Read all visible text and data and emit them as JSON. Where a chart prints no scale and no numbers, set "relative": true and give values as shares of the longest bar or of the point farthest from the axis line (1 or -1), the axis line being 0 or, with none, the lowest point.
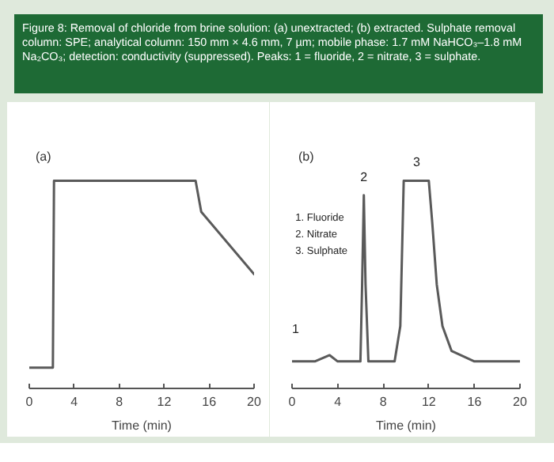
{
  "chart_data": [
    {
      "type": "line",
      "title": "Figure 8: Removal of chloride from brine solution: (a) unextracted; (b) extracted. Sulphate removal column: SPE; analytical column: 150 mm × 4.6 mm, 7 µm; mobile phase: 1.7 mM NaHCO₃–1.8 mM Na₂CO₃; detection: conductivity (suppressed). Peaks: 1 = fluoride, 2 = nitrate, 3 = sulphate.",
      "subtitle": "(a)",
      "xlabel": "Time (min)",
      "relative": true,
      "xlim": [
        0,
        20
      ],
      "xticks": [
        0,
        4,
        8,
        12,
        16,
        20
      ],
      "series": [
        {
          "color": "#5a5a5a",
          "x": [
            0,
            2.1,
            2.2,
            14.8,
            15.3,
            20
          ],
          "values": [
            0.1,
            0.1,
            1,
            1,
            0.85,
            0.55
          ]
        }
      ]
    },
    {
      "type": "line",
      "subtitle": "(b)",
      "xlabel": "Time (min)",
      "relative": true,
      "xlim": [
        0,
        20
      ],
      "xticks": [
        0,
        4,
        8,
        12,
        16,
        20
      ],
      "annotations": [
        "1. Fluoride",
        "2. Nitrate",
        "3. Sulphate",
        {
          "text": "1",
          "x": 0,
          "y": 0.13
        },
        {
          "text": "2",
          "x": 6.3,
          "y": 0.93
        },
        {
          "text": "3",
          "x": 9.8,
          "y": 1
        }
      ],
      "series": [
        {
          "color": "#5a5a5a",
          "x": [
            0,
            2,
            3.3,
            4,
            6,
            6.15,
            6.3,
            6.45,
            6.7,
            7,
            9,
            9.5,
            9.8,
            12,
            12.3,
            12.7,
            13.2,
            14,
            16,
            20
          ],
          "values": [
            0.13,
            0.13,
            0.16,
            0.13,
            0.13,
            0.5,
            0.93,
            0.5,
            0.13,
            0.13,
            0.13,
            0.3,
            1,
            1,
            0.8,
            0.5,
            0.3,
            0.18,
            0.13,
            0.13
          ]
        }
      ]
    }
  ]
}
